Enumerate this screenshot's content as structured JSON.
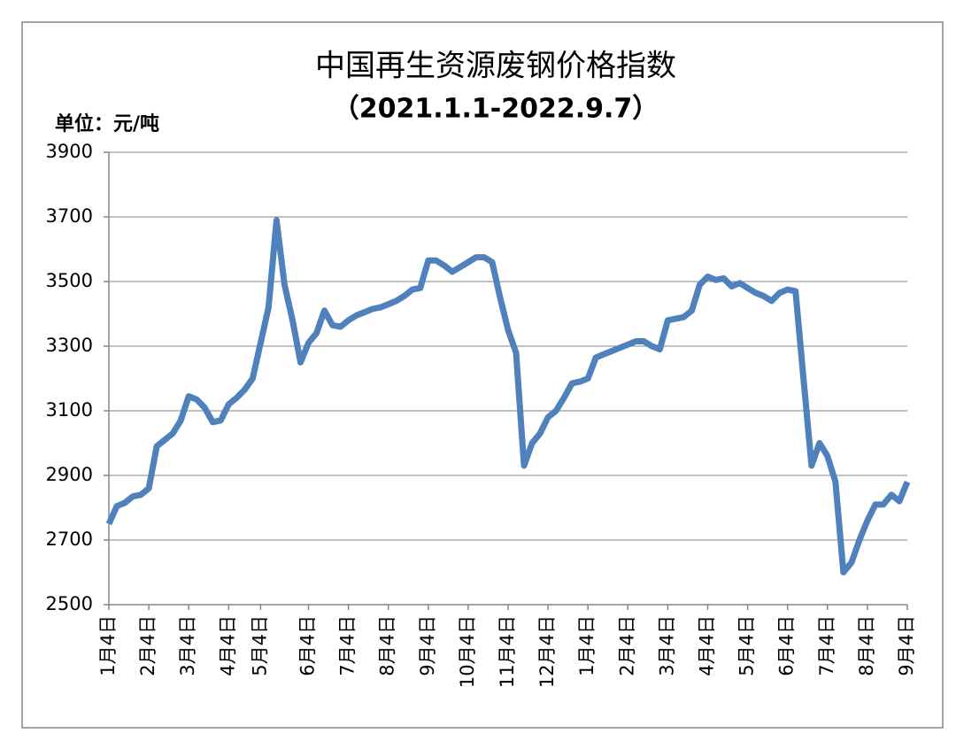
{
  "chart_data": {
    "type": "line",
    "title": "中国再生资源废钢价格指数",
    "subtitle": "（2021.1.1-2022.9.7）",
    "y_label": "单位：元/吨",
    "color": "#4f81bd",
    "ylim": [
      2500,
      3900
    ],
    "yticks": [
      2500,
      2700,
      2900,
      3100,
      3300,
      3500,
      3700,
      3900
    ],
    "grid": true,
    "categories": [
      "1月4日",
      null,
      null,
      null,
      null,
      "2月4日",
      null,
      null,
      null,
      null,
      "3月4日",
      null,
      null,
      null,
      null,
      "4月4日",
      null,
      null,
      null,
      "5月4日",
      null,
      null,
      null,
      null,
      null,
      "6月4日",
      null,
      null,
      null,
      null,
      "7月4日",
      null,
      null,
      null,
      null,
      "8月4日",
      null,
      null,
      null,
      null,
      "9月4日",
      null,
      null,
      null,
      null,
      "10月4日",
      null,
      null,
      null,
      null,
      "11月4日",
      null,
      null,
      null,
      null,
      "12月4日",
      null,
      null,
      null,
      null,
      "1月4日",
      null,
      null,
      null,
      null,
      "2月4日",
      null,
      null,
      null,
      null,
      "3月4日",
      null,
      null,
      null,
      null,
      "4月4日",
      null,
      null,
      null,
      null,
      "5月4日",
      null,
      null,
      null,
      null,
      "6月4日",
      null,
      null,
      null,
      null,
      "7月4日",
      null,
      null,
      null,
      null,
      "8月4日",
      null,
      null,
      null,
      null,
      "9月4日"
    ],
    "values": [
      2750,
      2805,
      2815,
      2835,
      2840,
      2860,
      2990,
      3010,
      3030,
      3070,
      3145,
      3135,
      3110,
      3065,
      3070,
      3120,
      3140,
      3165,
      3200,
      3310,
      3420,
      3690,
      3490,
      3380,
      3250,
      3310,
      3340,
      3410,
      3365,
      3360,
      3380,
      3395,
      3405,
      3415,
      3420,
      3430,
      3440,
      3455,
      3475,
      3480,
      3565,
      3565,
      3550,
      3530,
      3545,
      3560,
      3575,
      3575,
      3560,
      3450,
      3350,
      3280,
      2930,
      3000,
      3030,
      3080,
      3100,
      3140,
      3185,
      3190,
      3200,
      3265,
      3275,
      3285,
      3295,
      3305,
      3315,
      3315,
      3300,
      3290,
      3380,
      3385,
      3390,
      3410,
      3490,
      3515,
      3505,
      3510,
      3485,
      3495,
      3480,
      3465,
      3455,
      3440,
      3465,
      3475,
      3470,
      3200,
      2930,
      3000,
      2960,
      2880,
      2600,
      2630,
      2700,
      2760,
      2810,
      2810,
      2840,
      2820,
      2880
    ]
  }
}
